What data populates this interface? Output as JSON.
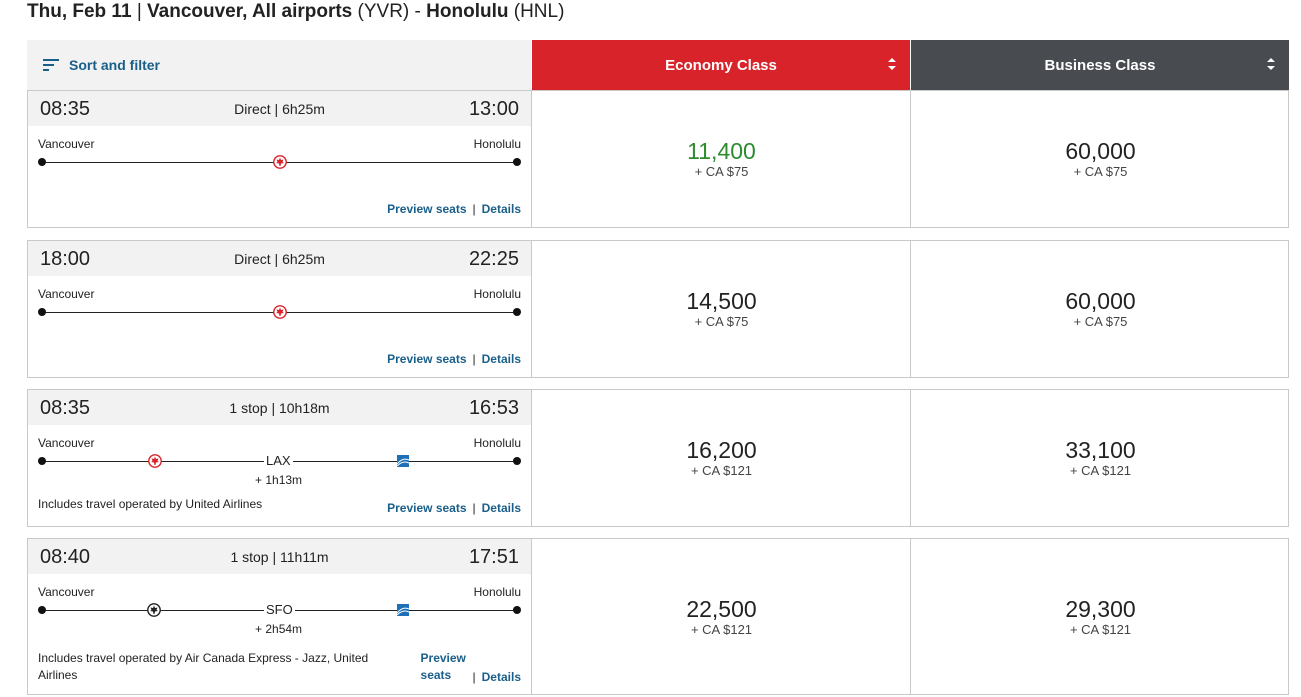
{
  "header": {
    "date": "Thu, Feb 11",
    "sep": "|",
    "origin_name": "Vancouver, All airports",
    "origin_code": "(YVR)",
    "dash": "-",
    "dest_name": "Honolulu",
    "dest_code": "(HNL)"
  },
  "sort": {
    "label": "Sort and filter"
  },
  "cabins": {
    "economy": "Economy Class",
    "business": "Business Class"
  },
  "colors": {
    "economy_header": "#d8232a",
    "business_header": "#484b50",
    "link": "#1a5f8a",
    "lowest_price": "#2e8b2e"
  },
  "flights": [
    {
      "dep": "08:35",
      "arr": "13:00",
      "duration": "Direct | 6h25m",
      "from": "Vancouver",
      "to": "Honolulu",
      "eco_pts": "11,400",
      "eco_fee": "+ CA $75",
      "bus_pts": "60,000",
      "bus_fee": "+ CA $75",
      "preview": "Preview seats",
      "details": "Details"
    },
    {
      "dep": "18:00",
      "arr": "22:25",
      "duration": "Direct | 6h25m",
      "from": "Vancouver",
      "to": "Honolulu",
      "eco_pts": "14,500",
      "eco_fee": "+ CA $75",
      "bus_pts": "60,000",
      "bus_fee": "+ CA $75",
      "preview": "Preview seats",
      "details": "Details"
    },
    {
      "dep": "08:35",
      "arr": "16:53",
      "duration": "1 stop | 10h18m",
      "from": "Vancouver",
      "to": "Honolulu",
      "stop": "LAX",
      "layover": "+ 1h13m",
      "operated": "Includes travel operated by United Airlines",
      "eco_pts": "16,200",
      "eco_fee": "+ CA $121",
      "bus_pts": "33,100",
      "bus_fee": "+ CA $121",
      "preview": "Preview seats",
      "details": "Details"
    },
    {
      "dep": "08:40",
      "arr": "17:51",
      "duration": "1 stop | 11h11m",
      "from": "Vancouver",
      "to": "Honolulu",
      "stop": "SFO",
      "layover": "+ 2h54m",
      "operated": "Includes travel operated by Air Canada Express - Jazz, United Airlines",
      "eco_pts": "22,500",
      "eco_fee": "+ CA $121",
      "bus_pts": "29,300",
      "bus_fee": "+ CA $121",
      "preview": "Preview seats",
      "details": "Details"
    }
  ]
}
